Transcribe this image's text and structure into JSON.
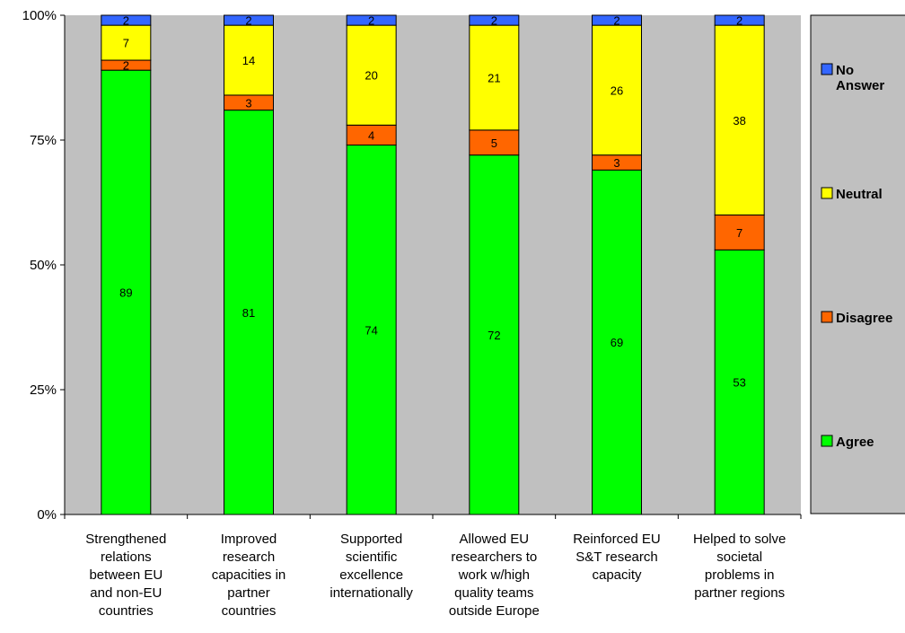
{
  "chart_data": {
    "type": "bar",
    "stacked": true,
    "percent_stacked": true,
    "categories": [
      [
        "Strengthened",
        "relations",
        "between EU",
        "and non-EU",
        "countries"
      ],
      [
        "Improved",
        "research",
        "capacities in",
        "partner",
        "countries"
      ],
      [
        "Supported",
        "scientific",
        "excellence",
        "internationally"
      ],
      [
        "Allowed EU",
        "researchers to",
        "work w/high",
        "quality teams",
        "outside Europe"
      ],
      [
        "Reinforced EU",
        "S&T research",
        "capacity"
      ],
      [
        "Helped to solve",
        "societal",
        "problems in",
        "partner regions"
      ]
    ],
    "series": [
      {
        "name": "Agree",
        "color": "#00ff00",
        "values": [
          89,
          81,
          74,
          72,
          69,
          53
        ]
      },
      {
        "name": "Disagree",
        "color": "#ff6600",
        "values": [
          2,
          3,
          4,
          5,
          3,
          7
        ]
      },
      {
        "name": "Neutral",
        "color": "#ffff00",
        "values": [
          7,
          14,
          20,
          21,
          26,
          38
        ]
      },
      {
        "name": "No Answer",
        "color": "#3366ff",
        "values": [
          2,
          2,
          2,
          2,
          2,
          2
        ]
      }
    ],
    "legend_labels": [
      [
        "No",
        "Answer"
      ],
      [
        "Neutral"
      ],
      [
        "Disagree"
      ],
      [
        "Agree"
      ]
    ],
    "y_ticks": [
      "0%",
      "25%",
      "50%",
      "75%",
      "100%"
    ],
    "ylim": [
      0,
      100
    ],
    "legend_position": "right",
    "plot_background": "#c0c0c0"
  }
}
